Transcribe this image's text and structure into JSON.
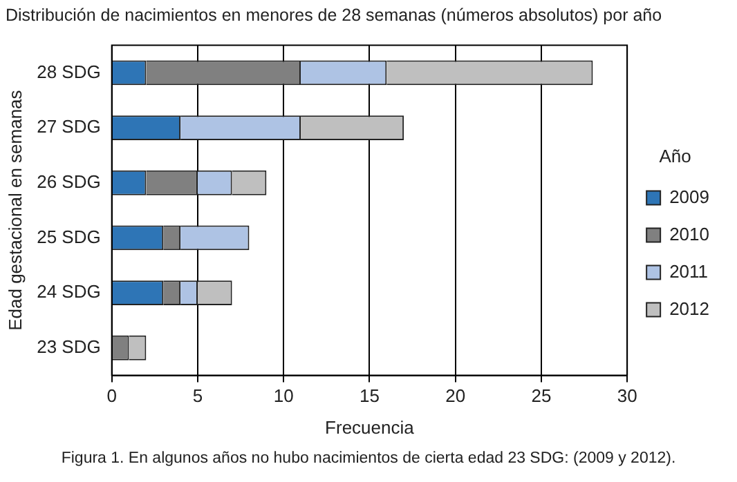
{
  "chart_data": {
    "type": "bar",
    "orientation": "horizontal",
    "stacked": true,
    "title": "Distribución de nacimientos en menores de 28 semanas (números absolutos) por año",
    "xlabel": "Frecuencia",
    "ylabel": "Edad gestacional en semanas",
    "legend_title": "Año",
    "legend": "right",
    "grid": "x",
    "categories": [
      "28 SDG",
      "27 SDG",
      "26 SDG",
      "25 SDG",
      "24 SDG",
      "23 SDG"
    ],
    "series": [
      {
        "name": "2009",
        "color": "#2e75b6",
        "values": [
          2,
          4,
          2,
          3,
          3,
          0
        ]
      },
      {
        "name": "2010",
        "color": "#808080",
        "values": [
          9,
          0,
          3,
          1,
          1,
          1
        ]
      },
      {
        "name": "2011",
        "color": "#aec3e4",
        "values": [
          5,
          7,
          2,
          4,
          1,
          0
        ]
      },
      {
        "name": "2012",
        "color": "#bfbfbf",
        "values": [
          12,
          6,
          2,
          0,
          2,
          1
        ]
      }
    ],
    "xlim": [
      0,
      30
    ],
    "xticks": [
      0,
      5,
      10,
      15,
      20,
      25,
      30
    ],
    "annotations": [
      "Figura 1. En algunos años no hubo nacimientos de cierta edad 23 SDG: (2009 y 2012)."
    ]
  }
}
